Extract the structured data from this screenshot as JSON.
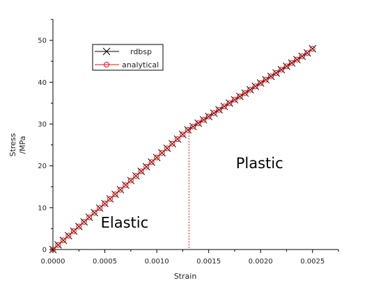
{
  "chart_data": {
    "type": "line",
    "xlabel": "Strain",
    "ylabel_line1": "Stress",
    "ylabel_line2": "/MPa",
    "xlim": [
      0,
      0.00275
    ],
    "ylim": [
      0,
      55
    ],
    "xticks": [
      0,
      0.0005,
      0.001,
      0.0015,
      0.002,
      0.0025
    ],
    "xtick_labels": [
      "0.0000",
      "0.0005",
      "0.0010",
      "0.0015",
      "0.0020",
      "0.0025"
    ],
    "yticks": [
      0,
      10,
      20,
      30,
      40,
      50
    ],
    "ytick_labels": [
      "0",
      "10",
      "20",
      "30",
      "40",
      "50"
    ],
    "yield_point": {
      "x": 0.00131,
      "y": 28.6
    },
    "annotations": [
      {
        "text": "Elastic",
        "x": 0.00069,
        "y": 5.2
      },
      {
        "text": "Plastic",
        "x": 0.00199,
        "y": 19.4
      }
    ],
    "legend": {
      "position": "top-left"
    },
    "series": [
      {
        "name": "rdbsp",
        "marker": "x",
        "color": "#000000",
        "x": [
          0,
          5e-05,
          0.0001,
          0.00015,
          0.0002,
          0.00025,
          0.0003,
          0.00035,
          0.0004,
          0.00045,
          0.0005,
          0.00055,
          0.0006,
          0.00065,
          0.0007,
          0.00075,
          0.0008,
          0.00085,
          0.0009,
          0.00095,
          0.001,
          0.00105,
          0.0011,
          0.00115,
          0.0012,
          0.00125,
          0.0013,
          0.00135,
          0.0014,
          0.00145,
          0.0015,
          0.00155,
          0.0016,
          0.00165,
          0.0017,
          0.00175,
          0.0018,
          0.00185,
          0.0019,
          0.00195,
          0.002,
          0.00205,
          0.0021,
          0.00215,
          0.0022,
          0.00225,
          0.0023,
          0.00235,
          0.0024,
          0.00245,
          0.0025
        ],
        "y": [
          0,
          1.1,
          2.2,
          3.3,
          4.4,
          5.5,
          6.6,
          7.7,
          8.8,
          9.9,
          11.0,
          12.1,
          13.2,
          14.3,
          15.4,
          16.5,
          17.6,
          18.7,
          19.8,
          20.9,
          22.0,
          23.1,
          24.2,
          25.3,
          26.4,
          27.5,
          28.6,
          29.4,
          30.2,
          31.0,
          31.8,
          32.6,
          33.4,
          34.2,
          35.0,
          35.8,
          36.6,
          37.4,
          38.2,
          39.0,
          39.8,
          40.6,
          41.4,
          42.2,
          43.0,
          43.8,
          44.6,
          45.4,
          46.2,
          47.0,
          48.0
        ]
      },
      {
        "name": "analytical",
        "marker": "o",
        "color": "#e01010",
        "x": [
          0,
          5e-05,
          0.0001,
          0.00015,
          0.0002,
          0.00025,
          0.0003,
          0.00035,
          0.0004,
          0.00045,
          0.0005,
          0.00055,
          0.0006,
          0.00065,
          0.0007,
          0.00075,
          0.0008,
          0.00085,
          0.0009,
          0.00095,
          0.001,
          0.00105,
          0.0011,
          0.00115,
          0.0012,
          0.00125,
          0.0013,
          0.00135,
          0.0014,
          0.00145,
          0.0015,
          0.00155,
          0.0016,
          0.00165,
          0.0017,
          0.00175,
          0.0018,
          0.00185,
          0.0019,
          0.00195,
          0.002,
          0.00205,
          0.0021,
          0.00215,
          0.0022,
          0.00225,
          0.0023,
          0.00235,
          0.0024,
          0.00245,
          0.0025
        ],
        "y": [
          0,
          1.1,
          2.2,
          3.3,
          4.4,
          5.5,
          6.6,
          7.7,
          8.8,
          9.9,
          11.0,
          12.1,
          13.2,
          14.3,
          15.4,
          16.5,
          17.6,
          18.7,
          19.8,
          20.9,
          22.0,
          23.1,
          24.2,
          25.3,
          26.4,
          27.5,
          28.6,
          29.4,
          30.2,
          31.0,
          31.8,
          32.6,
          33.4,
          34.2,
          35.0,
          35.8,
          36.6,
          37.4,
          38.2,
          39.0,
          39.8,
          40.6,
          41.4,
          42.2,
          43.0,
          43.8,
          44.6,
          45.4,
          46.2,
          47.0,
          48.0
        ]
      }
    ]
  }
}
